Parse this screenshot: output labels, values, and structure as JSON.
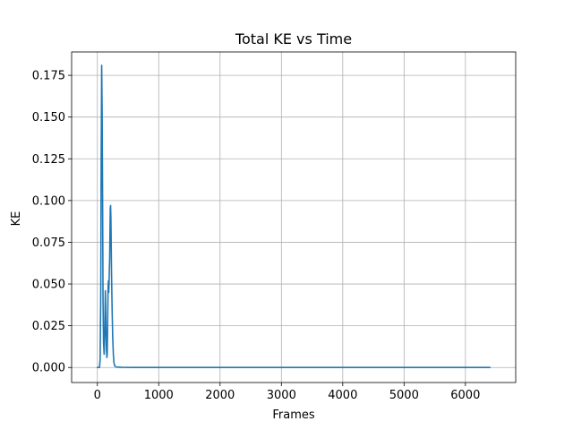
{
  "chart_data": {
    "type": "line",
    "title": "Total KE vs Time",
    "xlabel": "Frames",
    "ylabel": "KE",
    "xlim": [
      -420,
      6820
    ],
    "ylim": [
      -0.009,
      0.189
    ],
    "grid": true,
    "x_ticks": [
      0,
      1000,
      2000,
      3000,
      4000,
      5000,
      6000
    ],
    "x_tick_labels": [
      "0",
      "1000",
      "2000",
      "3000",
      "4000",
      "5000",
      "6000"
    ],
    "y_ticks": [
      0.0,
      0.025,
      0.05,
      0.075,
      0.1,
      0.125,
      0.15,
      0.175
    ],
    "y_tick_labels": [
      "0.000",
      "0.025",
      "0.050",
      "0.075",
      "0.100",
      "0.125",
      "0.150",
      "0.175"
    ],
    "series": [
      {
        "color": "#1f77b4",
        "x": [
          0,
          20,
          35,
          45,
          55,
          62,
          70,
          78,
          85,
          92,
          100,
          110,
          120,
          130,
          140,
          148,
          155,
          160,
          165,
          170,
          175,
          180,
          185,
          190,
          195,
          200,
          205,
          210,
          215,
          220,
          225,
          230,
          240,
          250,
          260,
          270,
          280,
          300,
          330,
          400,
          600,
          1000,
          2000,
          3000,
          4000,
          5000,
          6000,
          6400
        ],
        "y": [
          0.0,
          0.0,
          0.0,
          0.005,
          0.045,
          0.125,
          0.181,
          0.15,
          0.1,
          0.04,
          0.015,
          0.008,
          0.02,
          0.046,
          0.025,
          0.01,
          0.006,
          0.008,
          0.02,
          0.035,
          0.048,
          0.052,
          0.045,
          0.05,
          0.058,
          0.065,
          0.08,
          0.095,
          0.097,
          0.09,
          0.075,
          0.058,
          0.035,
          0.018,
          0.008,
          0.003,
          0.0012,
          0.0004,
          0.0002,
          0.0001,
          0.0,
          0.0,
          0.0,
          0.0,
          0.0,
          0.0,
          0.0,
          0.0
        ]
      }
    ]
  }
}
